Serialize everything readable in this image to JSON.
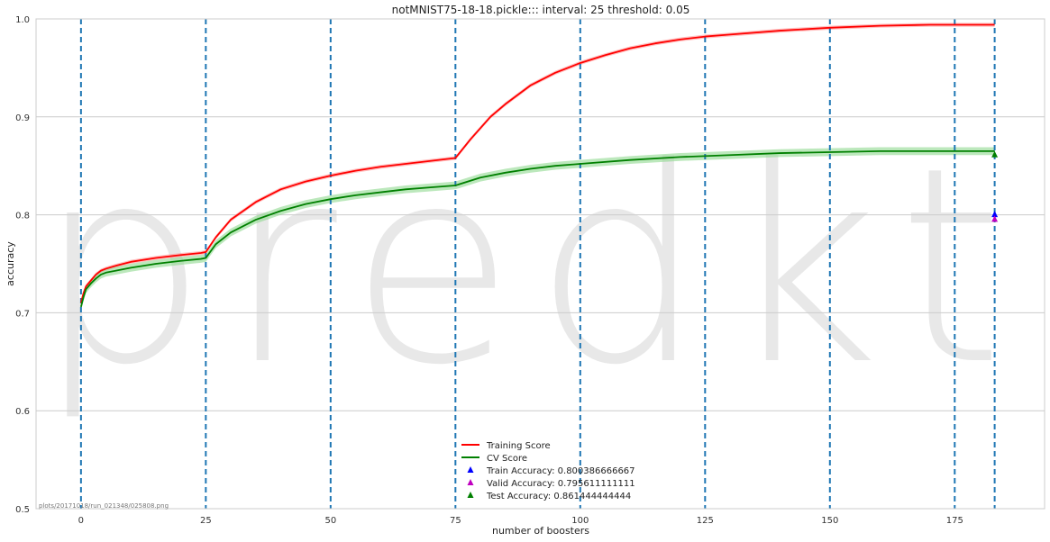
{
  "chart_data": {
    "type": "line",
    "title": "notMNIST75-18-18.pickle::: interval: 25 threshold: 0.05",
    "xlabel": "number of boosters",
    "ylabel": "accuracy",
    "xlim": [
      -9,
      193
    ],
    "ylim": [
      0.5,
      1.0
    ],
    "xticks": [
      0,
      25,
      50,
      75,
      100,
      125,
      150,
      175
    ],
    "yticks": [
      0.5,
      0.6,
      0.7,
      0.8,
      0.9,
      1.0
    ],
    "xtick_labels": [
      "0",
      "25",
      "50",
      "75",
      "100",
      "125",
      "150",
      "175"
    ],
    "ytick_labels": [
      "0.5",
      "0.6",
      "0.7",
      "0.8",
      "0.9",
      "1.0"
    ],
    "grid": "horizontal",
    "legend_position": "bottom-center",
    "vlines": [
      0,
      25,
      50,
      75,
      100,
      125,
      150,
      175,
      183
    ],
    "vline_color": "#1f77b4",
    "watermark": "predkt.io",
    "footnote": "plots/20171018/run_021348/025808.png",
    "series": [
      {
        "name": "Training Score",
        "color": "#ff0000",
        "band_color": "#ff9999",
        "band_halfwidth": 0.002,
        "x": [
          0,
          0.5,
          1,
          2,
          3,
          4,
          5,
          7,
          10,
          15,
          20,
          24,
          25,
          27,
          30,
          35,
          40,
          45,
          50,
          55,
          60,
          65,
          70,
          75,
          78,
          82,
          85,
          90,
          95,
          100,
          105,
          110,
          115,
          120,
          125,
          130,
          140,
          150,
          160,
          170,
          175,
          183
        ],
        "y": [
          0.71,
          0.72,
          0.727,
          0.733,
          0.739,
          0.743,
          0.745,
          0.748,
          0.752,
          0.756,
          0.759,
          0.761,
          0.762,
          0.777,
          0.795,
          0.813,
          0.826,
          0.834,
          0.84,
          0.845,
          0.849,
          0.852,
          0.855,
          0.858,
          0.877,
          0.9,
          0.913,
          0.932,
          0.945,
          0.955,
          0.963,
          0.97,
          0.975,
          0.979,
          0.982,
          0.984,
          0.988,
          0.991,
          0.993,
          0.994,
          0.994,
          0.994
        ]
      },
      {
        "name": "CV Score",
        "color": "#008000",
        "band_color": "#90d890",
        "band_halfwidth": 0.004,
        "x": [
          0,
          0.5,
          1,
          2,
          3,
          4,
          5,
          7,
          10,
          15,
          20,
          24,
          25,
          27,
          30,
          35,
          40,
          45,
          50,
          55,
          60,
          65,
          70,
          75,
          80,
          85,
          90,
          95,
          100,
          110,
          120,
          130,
          140,
          150,
          160,
          170,
          175,
          183
        ],
        "y": [
          0.706,
          0.716,
          0.724,
          0.73,
          0.735,
          0.739,
          0.741,
          0.743,
          0.746,
          0.75,
          0.753,
          0.755,
          0.756,
          0.77,
          0.782,
          0.795,
          0.804,
          0.811,
          0.816,
          0.82,
          0.823,
          0.826,
          0.828,
          0.83,
          0.838,
          0.843,
          0.847,
          0.85,
          0.852,
          0.856,
          0.859,
          0.861,
          0.863,
          0.864,
          0.865,
          0.865,
          0.865,
          0.865
        ]
      }
    ],
    "markers": [
      {
        "name": "Train Accuracy: 0.800386666667",
        "x": 183,
        "y": 0.800386666667,
        "color": "#0000ff"
      },
      {
        "name": "Valid Accuracy: 0.795611111111",
        "x": 183,
        "y": 0.795611111111,
        "color": "#bf00bf"
      },
      {
        "name": "Test Accuracy: 0.861444444444",
        "x": 183,
        "y": 0.861444444444,
        "color": "#008000"
      }
    ]
  }
}
